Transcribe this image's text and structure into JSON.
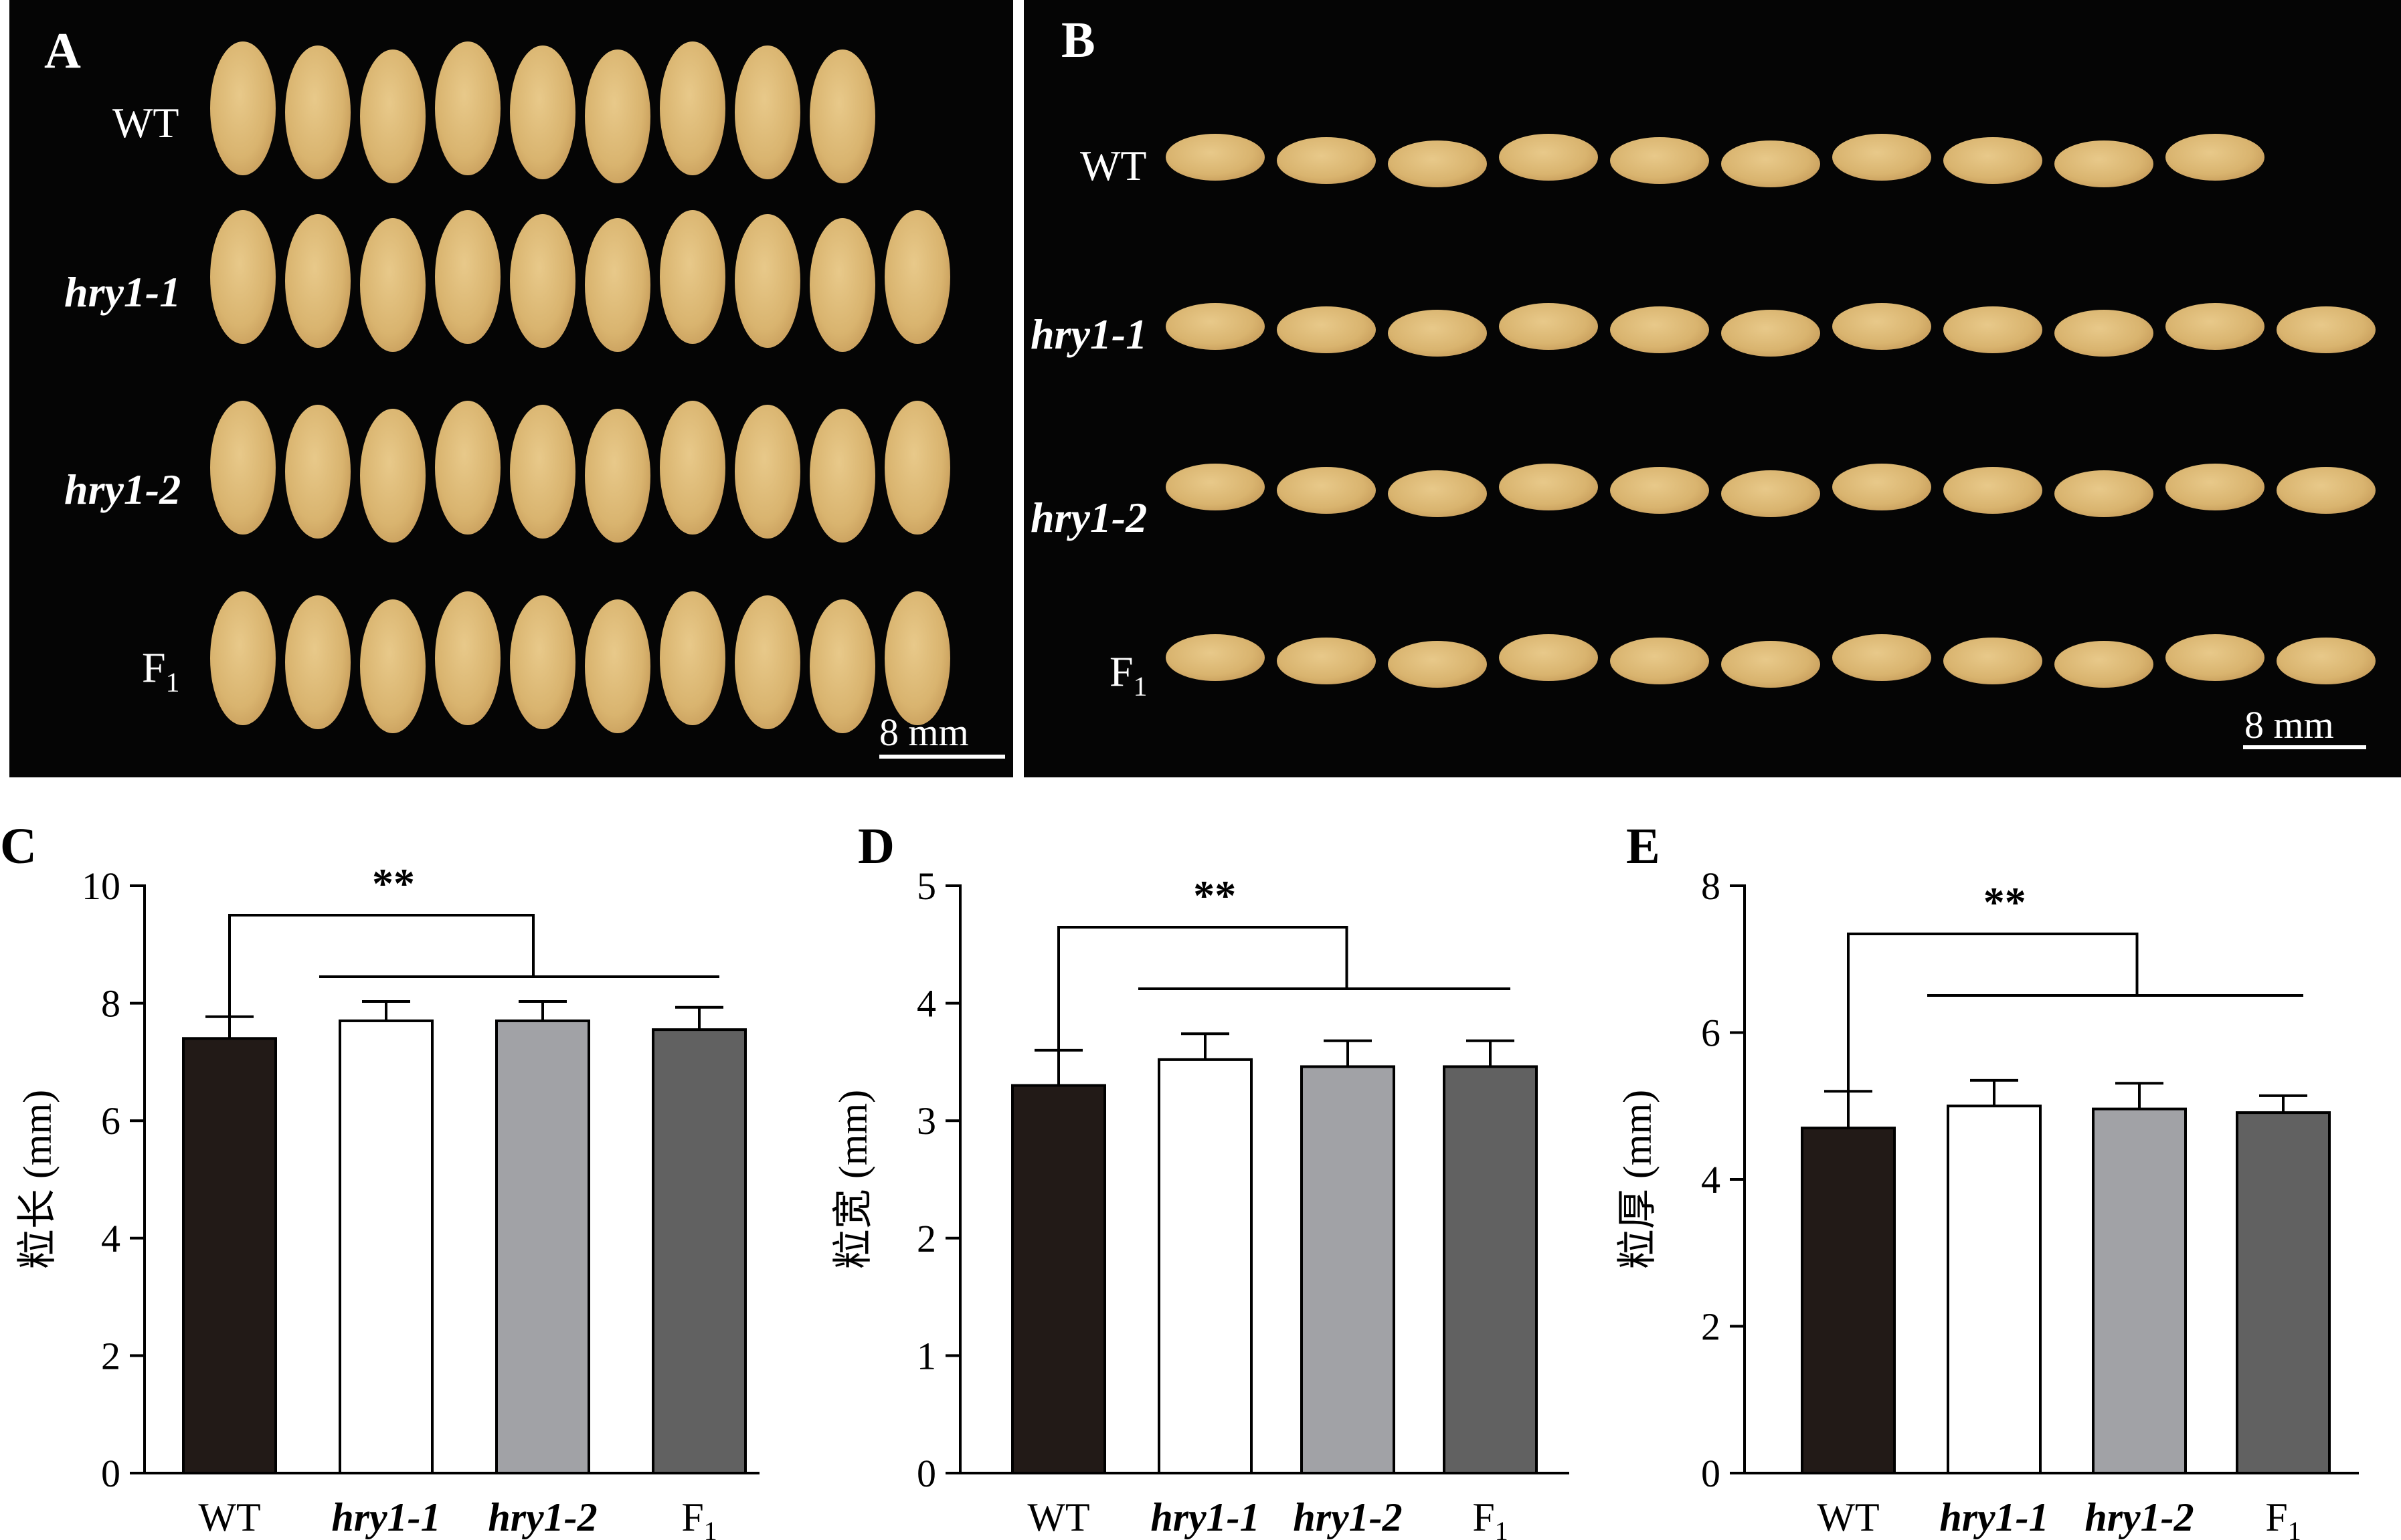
{
  "panels": {
    "a": {
      "letter": "A",
      "rows": [
        "WT",
        "hry1-1",
        "hry1-2",
        "F1"
      ],
      "scale_bar": "8 mm"
    },
    "b": {
      "letter": "B",
      "rows": [
        "WT",
        "hry1-1",
        "hry1-2",
        "F1"
      ],
      "scale_bar": "8 mm"
    }
  },
  "colors": {
    "photo_background": "#050505",
    "grain_light": "#e8c98a",
    "grain_dark": "#b8894a",
    "WT": "#221a17",
    "hry1-1": "#ffffff",
    "hry1-2": "#a1a2a6",
    "F1": "#616161"
  },
  "chart_data": [
    {
      "panel": "C",
      "type": "bar",
      "ylabel": "粒长 (mm)",
      "categories": [
        "WT",
        "hry1-1",
        "hry1-2",
        "F1"
      ],
      "values": [
        7.4,
        7.7,
        7.7,
        7.55
      ],
      "errors": [
        0.37,
        0.33,
        0.33,
        0.38
      ],
      "ylim": [
        0,
        10
      ],
      "yticks": [
        0,
        2,
        4,
        6,
        8,
        10
      ],
      "significance": "**",
      "grid": false
    },
    {
      "panel": "D",
      "type": "bar",
      "ylabel": "粒宽 (mm)",
      "categories": [
        "WT",
        "hry1-1",
        "hry1-2",
        "F1"
      ],
      "values": [
        3.3,
        3.52,
        3.46,
        3.46
      ],
      "errors": [
        0.3,
        0.22,
        0.22,
        0.22
      ],
      "ylim": [
        0,
        5
      ],
      "yticks": [
        0,
        1,
        2,
        3,
        4,
        5
      ],
      "significance": "**",
      "grid": false
    },
    {
      "panel": "E",
      "type": "bar",
      "ylabel": "粒厚 (mm)",
      "categories": [
        "WT",
        "hry1-1",
        "hry1-2",
        "F1"
      ],
      "values": [
        4.7,
        5.0,
        4.96,
        4.91
      ],
      "errors": [
        0.5,
        0.35,
        0.35,
        0.23
      ],
      "ylim": [
        0,
        8
      ],
      "yticks": [
        0,
        2,
        4,
        6,
        8
      ],
      "significance": "**",
      "grid": false
    }
  ]
}
